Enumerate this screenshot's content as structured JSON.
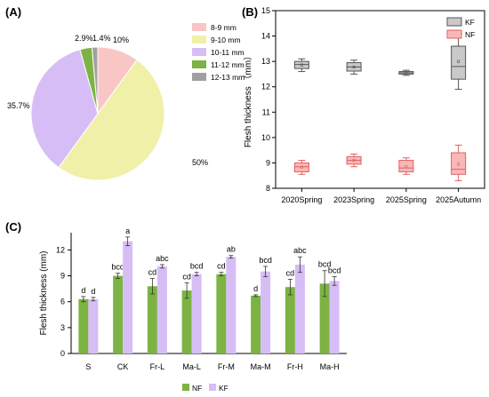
{
  "panels": {
    "a": "(A)",
    "b": "(B)",
    "c": "(C)"
  },
  "chart_data": [
    {
      "type": "pie",
      "panel": "(A)",
      "slices": [
        {
          "label": "8-9 mm",
          "value": 10,
          "pct_label": "10%",
          "color": "#f9c6c6"
        },
        {
          "label": "9-10 mm",
          "value": 50,
          "pct_label": "50%",
          "color": "#f1f0a8"
        },
        {
          "label": "10-11 mm",
          "value": 35.7,
          "pct_label": "35.7%",
          "color": "#d7bdf5"
        },
        {
          "label": "11-12 mm",
          "value": 2.9,
          "pct_label": "2.9%",
          "color": "#7cb342"
        },
        {
          "label": "12-13 mm",
          "value": 1.4,
          "pct_label": "1.4%",
          "color": "#a0a0a0"
        }
      ],
      "legend_position": "top-right"
    },
    {
      "type": "box",
      "panel": "(B)",
      "ylabel": "Flesh thickness （mm）",
      "ylim": [
        8,
        15
      ],
      "yticks": [
        8,
        9,
        10,
        11,
        12,
        13,
        14,
        15
      ],
      "categories": [
        "2020Spring",
        "2023Spring",
        "2025Spring",
        "2025Autumn"
      ],
      "series": [
        {
          "name": "KF",
          "color": "#c9c9c9",
          "stroke": "#555555",
          "boxes": [
            {
              "min": 12.6,
              "q1": 12.72,
              "median": 12.88,
              "q3": 13.0,
              "max": 13.1,
              "mean": 12.86
            },
            {
              "min": 12.5,
              "q1": 12.62,
              "median": 12.78,
              "q3": 12.95,
              "max": 13.05,
              "mean": 12.78
            },
            {
              "min": 12.45,
              "q1": 12.5,
              "median": 12.55,
              "q3": 12.6,
              "max": 12.65,
              "mean": 12.55
            },
            {
              "min": 11.9,
              "q1": 12.3,
              "median": 12.8,
              "q3": 13.6,
              "max": 14.1,
              "mean": 13.0
            }
          ]
        },
        {
          "name": "NF",
          "color": "#f9b8b8",
          "stroke": "#e06060",
          "boxes": [
            {
              "min": 8.55,
              "q1": 8.65,
              "median": 8.85,
              "q3": 9.0,
              "max": 9.1,
              "mean": 8.83
            },
            {
              "min": 8.85,
              "q1": 8.95,
              "median": 9.1,
              "q3": 9.25,
              "max": 9.35,
              "mean": 9.1
            },
            {
              "min": 8.55,
              "q1": 8.65,
              "median": 8.8,
              "q3": 9.1,
              "max": 9.2,
              "mean": 8.85
            },
            {
              "min": 8.3,
              "q1": 8.55,
              "median": 8.75,
              "q3": 9.4,
              "max": 9.7,
              "mean": 8.95
            }
          ]
        }
      ],
      "legend_position": "top-right"
    },
    {
      "type": "bar",
      "panel": "(C)",
      "ylabel": "Flesh thickness (mm)",
      "ylim": [
        0,
        14
      ],
      "yticks": [
        0,
        3,
        6,
        9,
        12
      ],
      "categories": [
        "S",
        "CK",
        "Fr-L",
        "Ma-L",
        "Fr-M",
        "Ma-M",
        "Fr-H",
        "Ma-H"
      ],
      "series": [
        {
          "name": "NF",
          "color": "#7cb342",
          "values": [
            6.3,
            9.0,
            7.8,
            7.3,
            9.2,
            6.7,
            7.7,
            8.1
          ],
          "errors": [
            0.3,
            0.3,
            0.9,
            0.9,
            0.2,
            0.1,
            0.9,
            1.5
          ],
          "letters": [
            "d",
            "bcd",
            "cd",
            "cd",
            "cd",
            "d",
            "cd",
            "bcd"
          ]
        },
        {
          "name": "KF",
          "color": "#d7bdf5",
          "values": [
            6.3,
            13.0,
            10.1,
            9.2,
            11.2,
            9.5,
            10.3,
            8.4
          ],
          "errors": [
            0.2,
            0.5,
            0.2,
            0.2,
            0.15,
            0.6,
            0.9,
            0.5
          ],
          "letters": [
            "d",
            "a",
            "abc",
            "bcd",
            "ab",
            "bcd",
            "abc",
            "bcd"
          ]
        }
      ],
      "legend_position": "bottom-center"
    }
  ]
}
